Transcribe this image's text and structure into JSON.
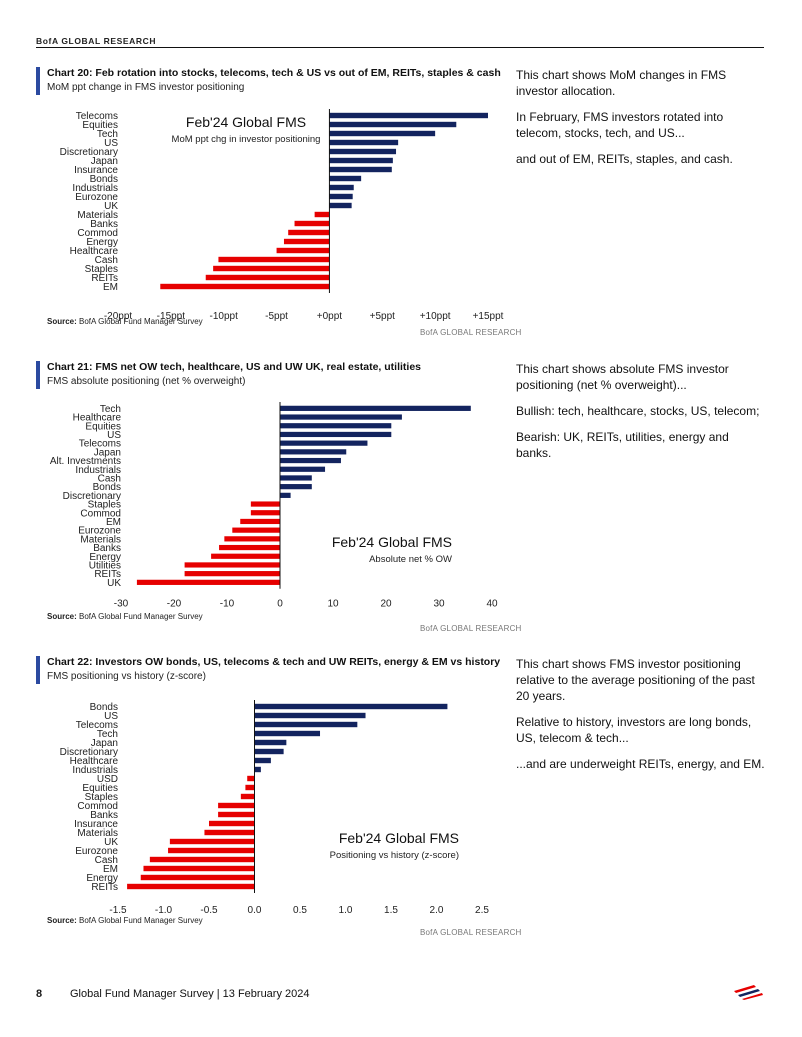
{
  "header": {
    "brand": "BofA GLOBAL RESEARCH"
  },
  "colors": {
    "positive": "#13245f",
    "negative": "#e60000",
    "accent": "#2b4aa0"
  },
  "charts": [
    {
      "title": "Chart 20: Feb rotation into stocks, telecoms, tech & US vs out of EM, REITs, staples & cash",
      "subtitle": "MoM ppt change in FMS investor positioning",
      "source_label": "Source:",
      "source_text": " BofA Global Fund Manager Survey",
      "watermark": "BofA GLOBAL RESEARCH",
      "commentary": [
        "This chart shows MoM changes in FMS investor allocation.",
        "In February, FMS investors rotated into telecom, stocks, tech, and US...",
        "and out of EM, REITs, staples, and cash."
      ]
    },
    {
      "title": "Chart 21: FMS net OW tech, healthcare, US and UW UK, real estate, utilities",
      "subtitle": "FMS absolute positioning (net % overweight)",
      "source_label": "Source:",
      "source_text": " BofA Global Fund Manager Survey",
      "watermark": "BofA GLOBAL RESEARCH",
      "commentary": [
        "This chart shows absolute FMS investor positioning (net % overweight)...",
        "Bullish: tech, healthcare, stocks, US, telecom;",
        "Bearish: UK, REITs, utilities, energy and banks."
      ]
    },
    {
      "title": "Chart 22: Investors OW bonds, US, telecoms & tech and UW REITs, energy & EM vs history",
      "subtitle": "FMS positioning vs history (z-score)",
      "source_label": "Source:",
      "source_text": " BofA Global Fund Manager Survey",
      "watermark": "BofA GLOBAL RESEARCH",
      "commentary": [
        "This chart shows FMS investor positioning relative to the average positioning of the past 20 years.",
        "Relative to history, investors are long bonds, US, telecom & tech...",
        "...and are underweight REITs, energy, and EM."
      ]
    }
  ],
  "chart_data": [
    {
      "type": "bar",
      "orientation": "horizontal",
      "title": "Feb'24 Global FMS",
      "subtitle": "MoM ppt chg in investor positioning",
      "categories": [
        "Telecoms",
        "Equities",
        "Tech",
        "US",
        "Discretionary",
        "Japan",
        "Insurance",
        "Bonds",
        "Industrials",
        "Eurozone",
        "UK",
        "Materials",
        "Banks",
        "Commod",
        "Energy",
        "Healthcare",
        "Cash",
        "Staples",
        "REITs",
        "EM"
      ],
      "values": [
        15,
        12,
        10,
        6.5,
        6.3,
        6,
        5.9,
        3,
        2.3,
        2.2,
        2.1,
        -1.4,
        -3.3,
        -3.9,
        -4.3,
        -5,
        -10.5,
        -11,
        -11.7,
        -16
      ],
      "xlim": [
        -20,
        15
      ],
      "xticks": [
        -20,
        -15,
        -10,
        -5,
        0,
        5,
        10,
        15
      ],
      "xtick_labels": [
        "-20ppt",
        "-15ppt",
        "-10ppt",
        "-5ppt",
        "+0ppt",
        "+5ppt",
        "+10ppt",
        "+15ppt"
      ],
      "legend_position": "top-left"
    },
    {
      "type": "bar",
      "orientation": "horizontal",
      "title": "Feb'24 Global FMS",
      "subtitle": "Absolute net % OW",
      "categories": [
        "Tech",
        "Healthcare",
        "Equities",
        "US",
        "Telecoms",
        "Japan",
        "Alt. Investments",
        "Industrials",
        "Cash",
        "Bonds",
        "Discretionary",
        "Staples",
        "Commod",
        "EM",
        "Eurozone",
        "Materials",
        "Banks",
        "Energy",
        "Utilities",
        "REITs",
        "UK"
      ],
      "values": [
        36,
        23,
        21,
        21,
        16.5,
        12.5,
        11.5,
        8.5,
        6,
        6,
        2,
        -5.5,
        -5.5,
        -7.5,
        -9,
        -10.5,
        -11.5,
        -13,
        -18,
        -18,
        -27
      ],
      "xlim": [
        -30,
        40
      ],
      "xticks": [
        -30,
        -20,
        -10,
        0,
        10,
        20,
        30,
        40
      ],
      "xtick_labels": [
        "-30",
        "-20",
        "-10",
        "0",
        "10",
        "20",
        "30",
        "40"
      ],
      "legend_position": "bottom-right"
    },
    {
      "type": "bar",
      "orientation": "horizontal",
      "title": "Feb'24 Global FMS",
      "subtitle": "Positioning vs history (z-score)",
      "categories": [
        "Bonds",
        "US",
        "Telecoms",
        "Tech",
        "Japan",
        "Discretionary",
        "Healthcare",
        "Industrials",
        "USD",
        "Equities",
        "Staples",
        "Commod",
        "Banks",
        "Insurance",
        "Materials",
        "UK",
        "Eurozone",
        "Cash",
        "EM",
        "Energy",
        "REITs"
      ],
      "values": [
        2.12,
        1.22,
        1.13,
        0.72,
        0.35,
        0.32,
        0.18,
        0.07,
        -0.08,
        -0.1,
        -0.15,
        -0.4,
        -0.4,
        -0.5,
        -0.55,
        -0.93,
        -0.95,
        -1.15,
        -1.22,
        -1.25,
        -1.4
      ],
      "xlim": [
        -1.5,
        2.5
      ],
      "xticks": [
        -1.5,
        -1.0,
        -0.5,
        0.0,
        0.5,
        1.0,
        1.5,
        2.0,
        2.5
      ],
      "xtick_labels": [
        "-1.5",
        "-1.0",
        "-0.5",
        "0.0",
        "0.5",
        "1.0",
        "1.5",
        "2.0",
        "2.5"
      ],
      "legend_position": "bottom-right"
    }
  ],
  "footer": {
    "page_number": "8",
    "doc_title": "Global Fund Manager Survey | 13 February 2024"
  }
}
